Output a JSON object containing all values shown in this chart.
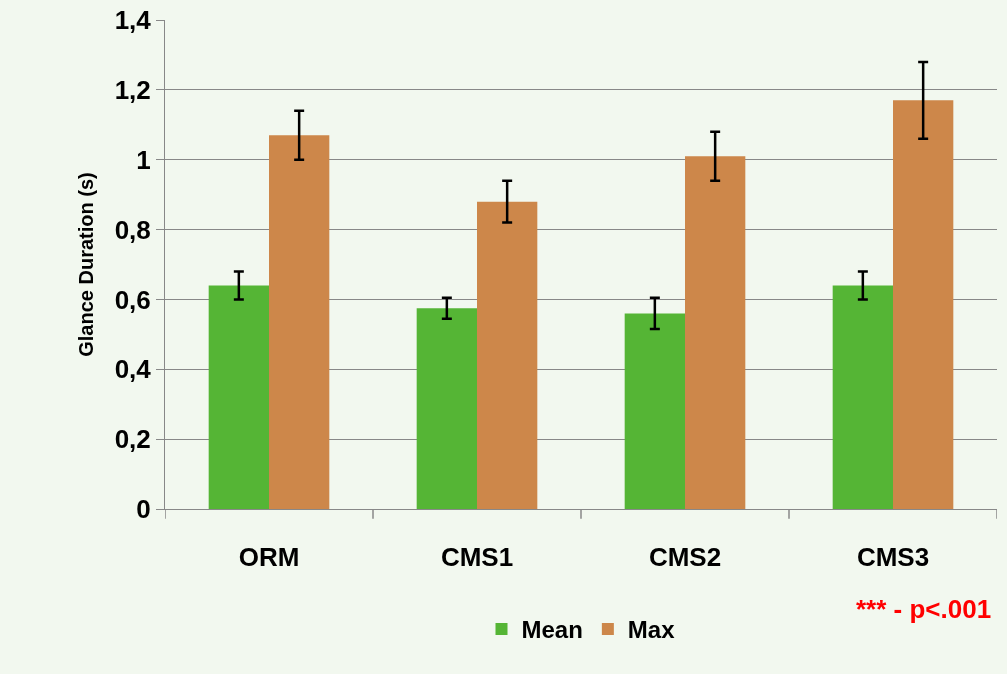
{
  "chart_data": {
    "type": "bar",
    "ylabel": "Glance Duration (s)",
    "categories": [
      "ORM",
      "CMS1",
      "CMS2",
      "CMS3"
    ],
    "series": [
      {
        "name": "Mean",
        "color": "#55b535",
        "values": [
          0.64,
          0.575,
          0.56,
          0.64
        ],
        "errors": [
          0.04,
          0.03,
          0.045,
          0.04
        ]
      },
      {
        "name": "Max",
        "color": "#cd874a",
        "values": [
          1.07,
          0.88,
          1.01,
          1.17
        ],
        "errors": [
          0.07,
          0.06,
          0.07,
          0.11
        ]
      }
    ],
    "ylim": [
      0,
      1.4
    ],
    "yticks": [
      0,
      {
        "value": 0.2,
        "label": "0,2"
      },
      {
        "value": 0.4,
        "label": "0,4"
      },
      {
        "value": 0.6,
        "label": "0,6"
      },
      {
        "value": 0.8,
        "label": "0,8"
      },
      {
        "value": 1,
        "label": "1"
      },
      {
        "value": 1.2,
        "label": "1,2"
      },
      {
        "value": 1.4,
        "label": "1,4"
      }
    ],
    "grid": "y",
    "legend": "bottom",
    "annotations": [
      "*** - p<.001"
    ]
  }
}
